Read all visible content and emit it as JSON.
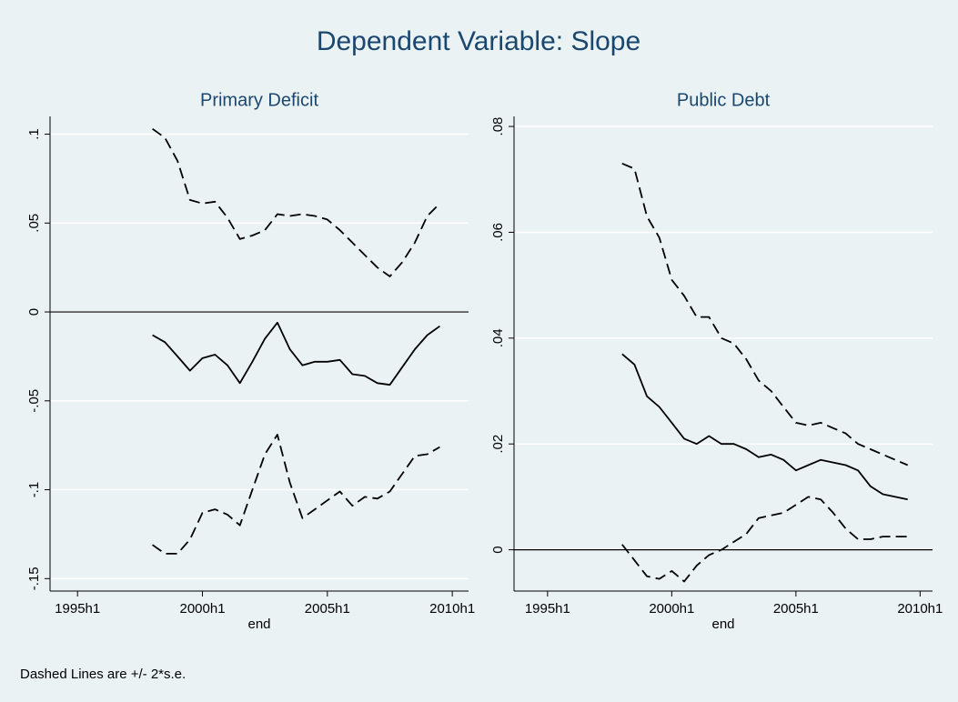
{
  "title": "Dependent Variable: Slope",
  "note": "Dashed Lines are +/- 2*s.e.",
  "chart_data": [
    {
      "type": "line",
      "title": "Primary Deficit",
      "xlabel": "end",
      "x": [
        76,
        77,
        78,
        79,
        80,
        81,
        82,
        83,
        84,
        85,
        86,
        87,
        88,
        89,
        90,
        91,
        92,
        93,
        94,
        95,
        96,
        97,
        98,
        99
      ],
      "series": [
        {
          "color": "#000000",
          "line_style": "dashed",
          "values": [
            0.103,
            0.098,
            0.085,
            0.063,
            0.061,
            0.062,
            0.053,
            0.041,
            0.043,
            0.046,
            0.055,
            0.054,
            0.055,
            0.054,
            0.052,
            0.046,
            0.039,
            0.032,
            0.025,
            0.02,
            0.028,
            0.039,
            0.054,
            0.061
          ]
        },
        {
          "color": "#000000",
          "line_style": "solid",
          "values": [
            -0.013,
            -0.017,
            -0.025,
            -0.033,
            -0.026,
            -0.024,
            -0.03,
            -0.04,
            -0.028,
            -0.015,
            -0.006,
            -0.021,
            -0.03,
            -0.028,
            -0.028,
            -0.027,
            -0.035,
            -0.036,
            -0.04,
            -0.041,
            -0.031,
            -0.021,
            -0.013,
            -0.008
          ]
        },
        {
          "color": "#000000",
          "line_style": "dashed",
          "values": [
            -0.131,
            -0.136,
            -0.136,
            -0.128,
            -0.113,
            -0.111,
            -0.114,
            -0.12,
            -0.1,
            -0.08,
            -0.069,
            -0.096,
            -0.116,
            -0.111,
            -0.106,
            -0.101,
            -0.109,
            -0.104,
            -0.105,
            -0.101,
            -0.091,
            -0.081,
            -0.08,
            -0.076
          ]
        }
      ],
      "xlim": [
        67.8,
        101.3
      ],
      "xticks": [
        {
          "value": 70,
          "label": "1995h1"
        },
        {
          "value": 80,
          "label": "2000h1"
        },
        {
          "value": 90,
          "label": "2005h1"
        },
        {
          "value": 100,
          "label": "2010h1"
        }
      ],
      "ylim": [
        -0.157,
        0.11
      ],
      "yticks": [
        {
          "value": -0.15,
          "label": "-.15"
        },
        {
          "value": -0.1,
          "label": "-.1"
        },
        {
          "value": -0.05,
          "label": "-.05"
        },
        0,
        {
          "value": 0.05,
          "label": ".05"
        },
        {
          "value": 0.1,
          "label": ".1"
        }
      ],
      "grid": true,
      "reference_line": 0
    },
    {
      "type": "line",
      "title": "Public Debt",
      "xlabel": "end",
      "x": [
        76,
        77,
        78,
        79,
        80,
        81,
        82,
        83,
        84,
        85,
        86,
        87,
        88,
        89,
        90,
        91,
        92,
        93,
        94,
        95,
        96,
        97,
        98,
        99
      ],
      "series": [
        {
          "color": "#000000",
          "line_style": "dashed",
          "values": [
            0.073,
            0.072,
            0.063,
            0.059,
            0.051,
            0.048,
            0.044,
            0.044,
            0.04,
            0.039,
            0.036,
            0.032,
            0.03,
            0.027,
            0.024,
            0.0235,
            0.024,
            0.023,
            0.022,
            0.02,
            0.019,
            0.018,
            0.017,
            0.016
          ]
        },
        {
          "color": "#000000",
          "line_style": "solid",
          "values": [
            0.037,
            0.035,
            0.029,
            0.027,
            0.024,
            0.021,
            0.02,
            0.0215,
            0.02,
            0.02,
            0.019,
            0.0175,
            0.018,
            0.017,
            0.015,
            0.016,
            0.017,
            0.0165,
            0.016,
            0.015,
            0.012,
            0.0105,
            0.01,
            0.0095
          ]
        },
        {
          "color": "#000000",
          "line_style": "dashed",
          "values": [
            0.001,
            -0.002,
            -0.005,
            -0.0055,
            -0.004,
            -0.006,
            -0.003,
            -0.001,
            0.0,
            0.0015,
            0.003,
            0.006,
            0.0065,
            0.007,
            0.0085,
            0.01,
            0.0095,
            0.007,
            0.004,
            0.002,
            0.002,
            0.0025,
            0.0025,
            0.0025
          ]
        }
      ],
      "xlim": [
        67.3,
        101.0
      ],
      "xticks": [
        {
          "value": 70,
          "label": "1995h1"
        },
        {
          "value": 80,
          "label": "2000h1"
        },
        {
          "value": 90,
          "label": "2005h1"
        },
        {
          "value": 100,
          "label": "2010h1"
        }
      ],
      "ylim": [
        -0.0078,
        0.0819
      ],
      "yticks": [
        0,
        {
          "value": 0.02,
          "label": ".02"
        },
        {
          "value": 0.04,
          "label": ".04"
        },
        {
          "value": 0.06,
          "label": ".06"
        },
        {
          "value": 0.08,
          "label": ".08"
        }
      ],
      "grid": true,
      "reference_line": 0
    }
  ]
}
